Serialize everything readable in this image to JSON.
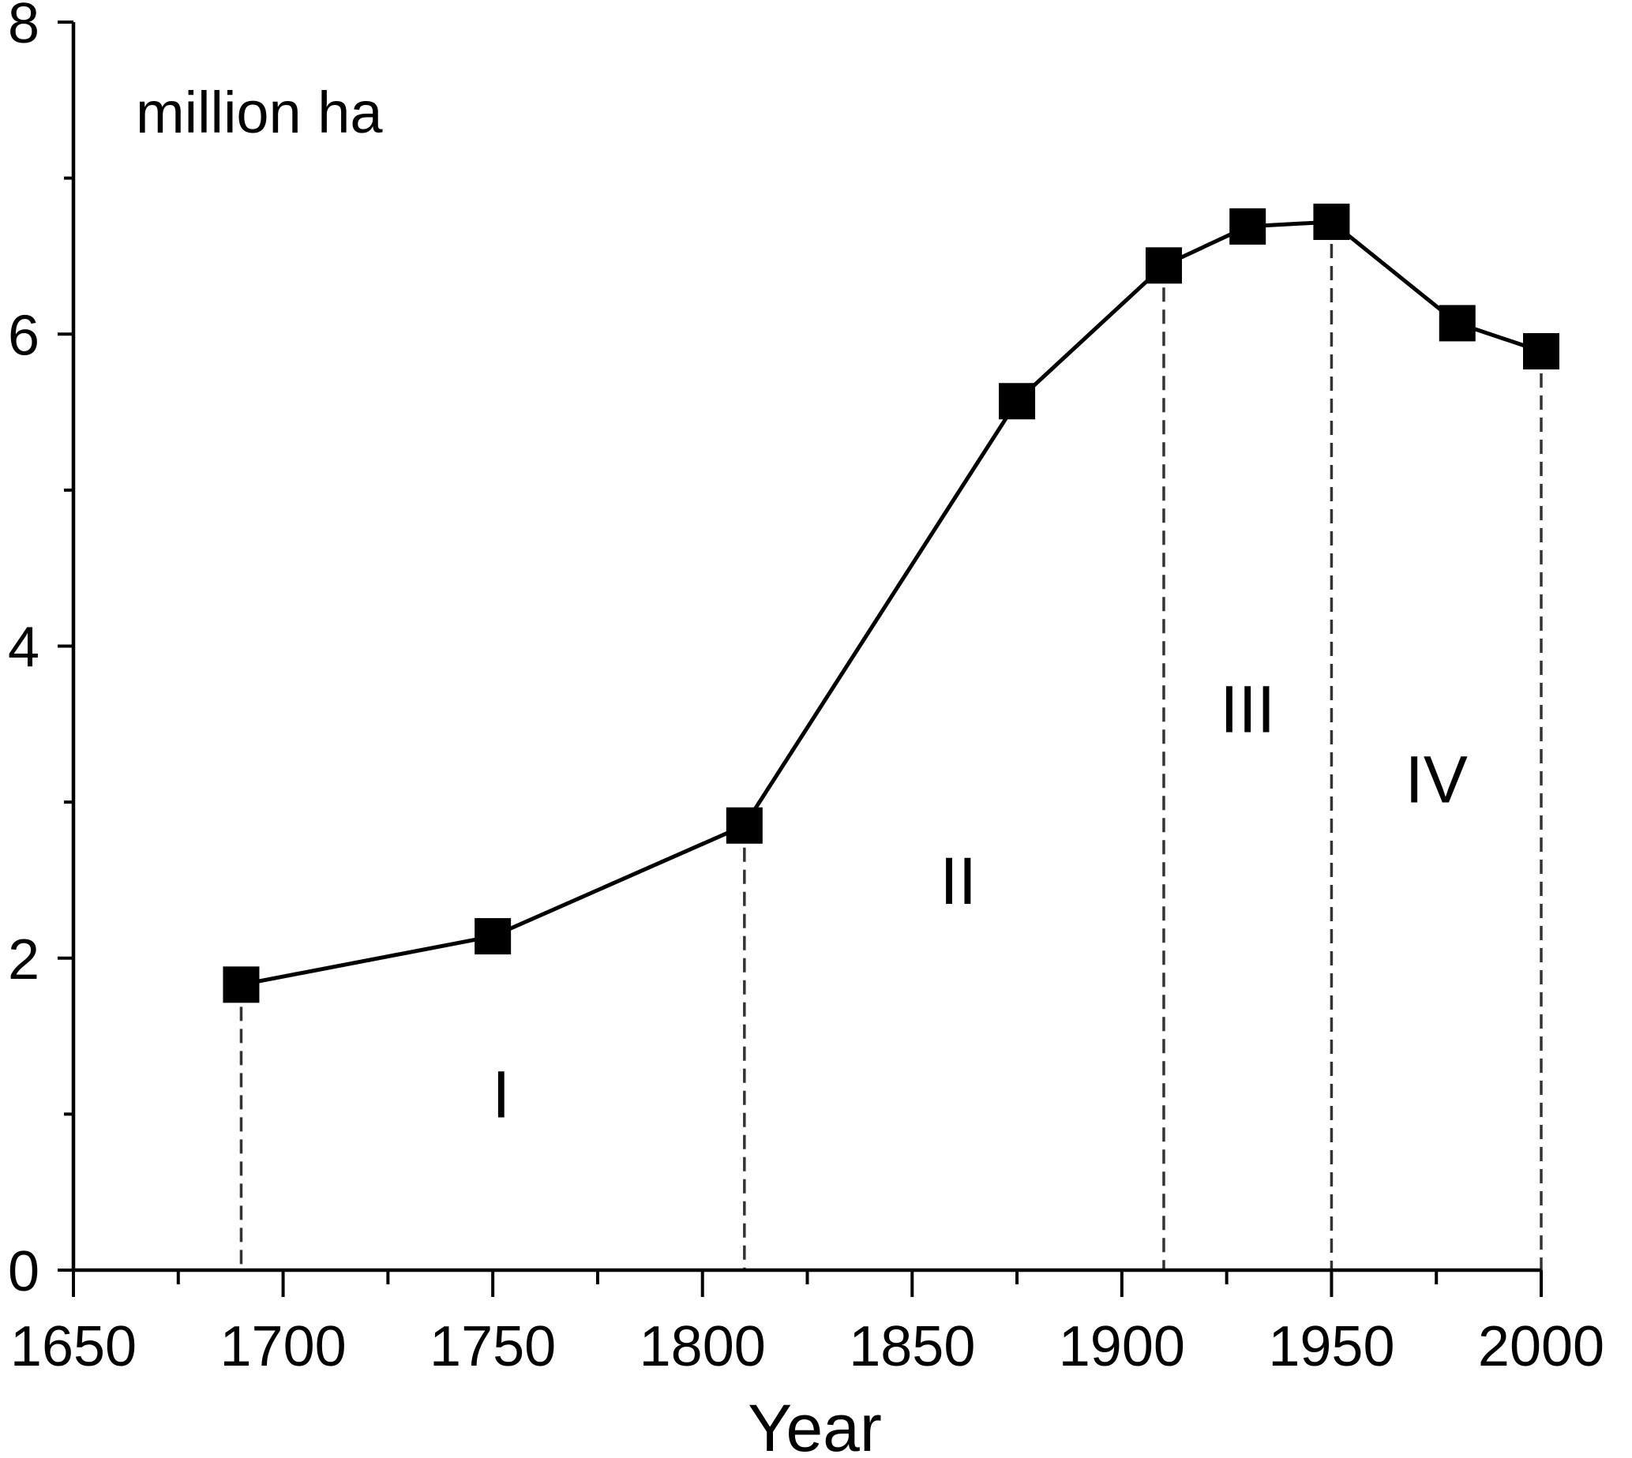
{
  "chart_data": {
    "type": "line",
    "xlabel": "Year",
    "ylabel_annotation": "million ha",
    "xlim": [
      1650,
      2000
    ],
    "ylim": [
      0,
      8
    ],
    "x_ticks": [
      1650,
      1700,
      1750,
      1800,
      1850,
      1900,
      1950,
      2000
    ],
    "x_minor_ticks": [
      1675,
      1725,
      1775,
      1825,
      1875,
      1925,
      1975
    ],
    "y_ticks": [
      0,
      2,
      4,
      6,
      8
    ],
    "y_minor_ticks": [
      1,
      3,
      5,
      7
    ],
    "series": [
      {
        "marker": "square",
        "color": "#000000",
        "x": [
          1690,
          1750,
          1810,
          1875,
          1910,
          1930,
          1950,
          1980,
          2000
        ],
        "y": [
          1.83,
          2.14,
          2.85,
          5.57,
          6.44,
          6.69,
          6.72,
          6.07,
          5.89
        ]
      }
    ],
    "phase_dividers": [
      1690,
      1810,
      1910,
      1950,
      2000
    ],
    "phases": [
      {
        "label": "I",
        "x": 1752,
        "y": 1.13
      },
      {
        "label": "II",
        "x": 1861,
        "y": 2.5
      },
      {
        "label": "III",
        "x": 1930,
        "y": 3.6
      },
      {
        "label": "IV",
        "x": 1975,
        "y": 3.15
      }
    ],
    "grid": false,
    "legend": "none"
  }
}
